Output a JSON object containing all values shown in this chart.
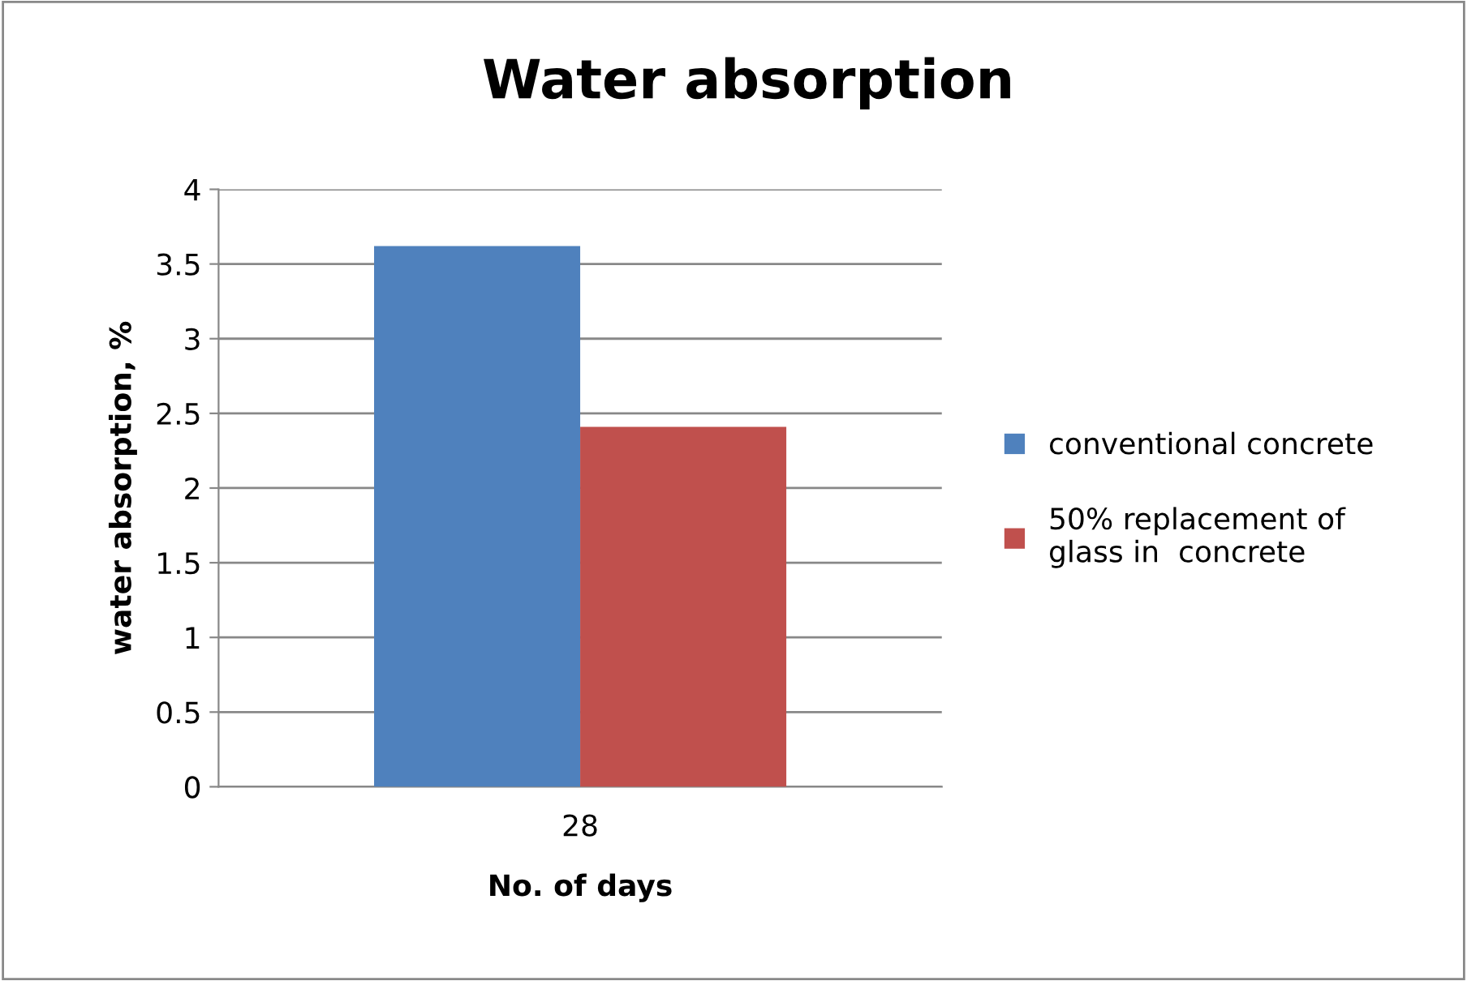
{
  "chart_data": {
    "type": "bar",
    "title": "Water absorption",
    "xlabel": "No. of days",
    "ylabel": "water absorption, %",
    "categories": [
      "28"
    ],
    "series": [
      {
        "name": "conventional concrete",
        "color": "#4f81bd",
        "values": [
          3.62
        ]
      },
      {
        "name": "50% replacement of\nglass in  concrete",
        "color": "#c0504d",
        "values": [
          2.41
        ]
      }
    ],
    "ylim": [
      0,
      4
    ],
    "yticks": [
      0,
      0.5,
      1,
      1.5,
      2,
      2.5,
      3,
      3.5,
      4
    ],
    "grid": "y",
    "legend": "right"
  }
}
